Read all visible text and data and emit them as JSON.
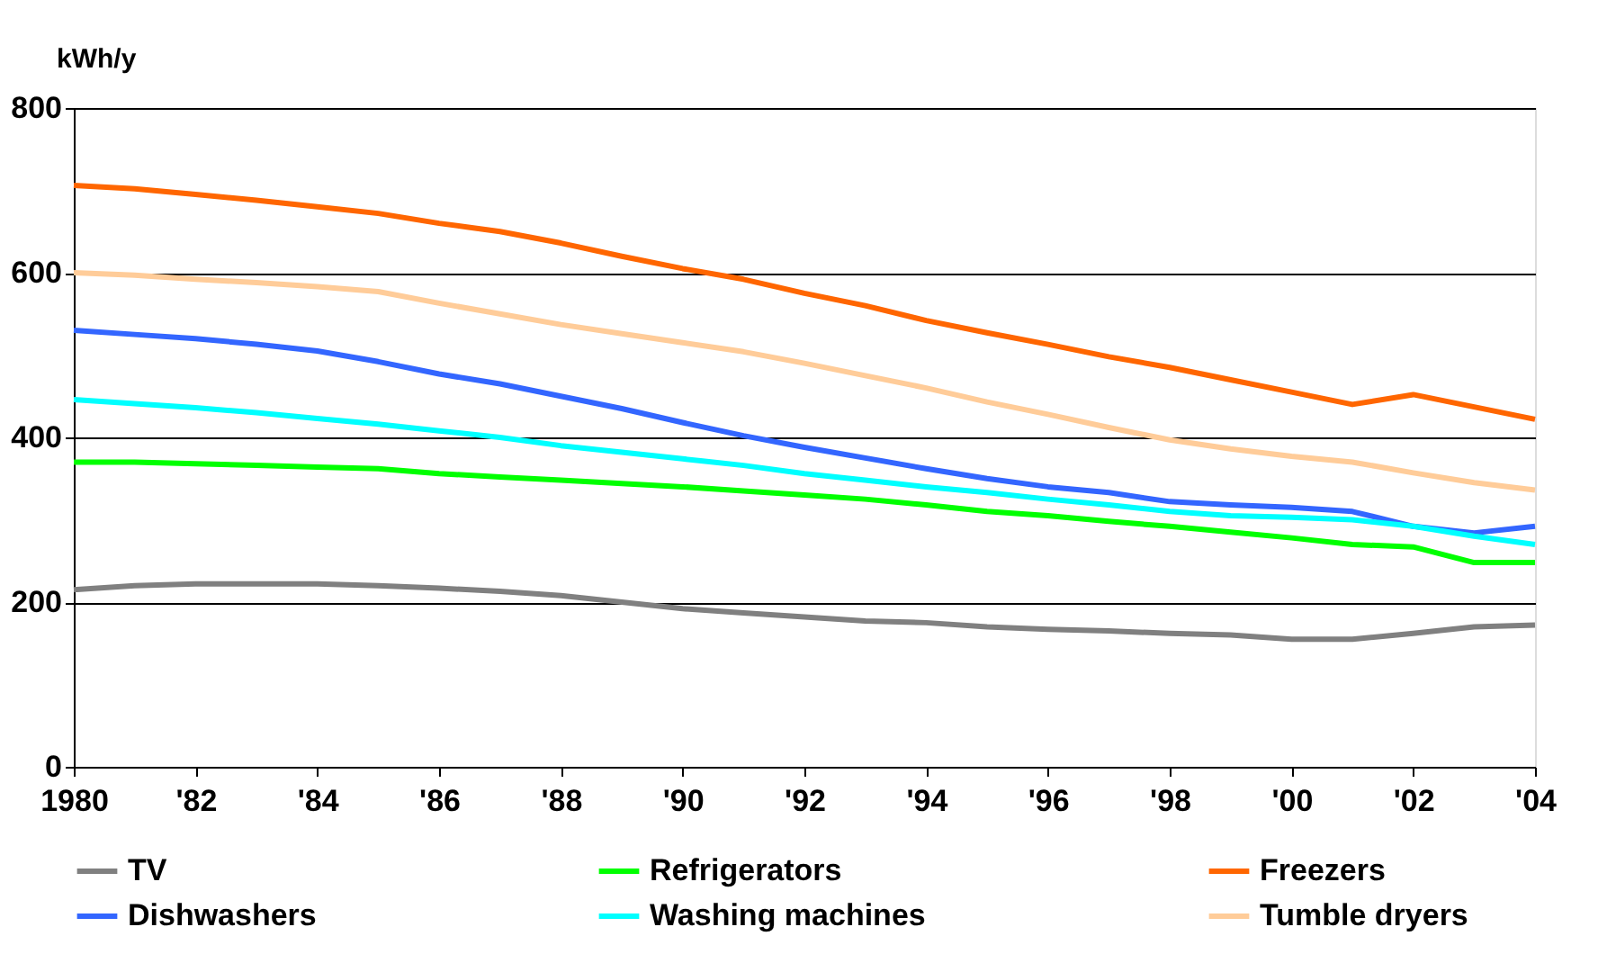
{
  "chart_data": {
    "type": "line",
    "ylabel": "kWh/y",
    "x": [
      1980,
      1981,
      1982,
      1983,
      1984,
      1985,
      1986,
      1987,
      1988,
      1989,
      1990,
      1991,
      1992,
      1993,
      1994,
      1995,
      1996,
      1997,
      1998,
      1999,
      2000,
      2001,
      2002,
      2003,
      2004
    ],
    "xlim": [
      1980,
      2004
    ],
    "xticks": [
      1980,
      {
        "value": 1982,
        "label": "'82"
      },
      {
        "value": 1984,
        "label": "'84"
      },
      {
        "value": 1986,
        "label": "'86"
      },
      {
        "value": 1988,
        "label": "'88"
      },
      {
        "value": 1990,
        "label": "'90"
      },
      {
        "value": 1992,
        "label": "'92"
      },
      {
        "value": 1994,
        "label": "'94"
      },
      {
        "value": 1996,
        "label": "'96"
      },
      {
        "value": 1998,
        "label": "'98"
      },
      {
        "value": 2000,
        "label": "'00"
      },
      {
        "value": 2002,
        "label": "'02"
      },
      {
        "value": 2004,
        "label": "'04"
      }
    ],
    "ylim": [
      0,
      800
    ],
    "yticks": [
      0,
      200,
      400,
      600,
      800
    ],
    "grid": "y",
    "legend": "bottom",
    "marker": "none",
    "line_style": "solid",
    "series": [
      {
        "name": "TV",
        "color": "#808080",
        "values": [
          215,
          220,
          222,
          222,
          222,
          220,
          217,
          213,
          208,
          200,
          192,
          187,
          182,
          177,
          175,
          170,
          167,
          165,
          162,
          160,
          155,
          155,
          162,
          170,
          172
        ]
      },
      {
        "name": "Refrigerators",
        "color": "#00ff00",
        "values": [
          370,
          370,
          368,
          366,
          364,
          362,
          356,
          352,
          348,
          344,
          340,
          335,
          330,
          325,
          318,
          310,
          305,
          298,
          292,
          285,
          278,
          270,
          267,
          248,
          248
        ]
      },
      {
        "name": "Freezers",
        "color": "#ff6600",
        "values": [
          706,
          702,
          695,
          688,
          680,
          672,
          660,
          650,
          636,
          620,
          605,
          592,
          575,
          560,
          542,
          527,
          513,
          498,
          485,
          470,
          455,
          440,
          452,
          437,
          422
        ]
      },
      {
        "name": "Dishwashers",
        "color": "#3366ff",
        "values": [
          530,
          525,
          520,
          513,
          505,
          492,
          477,
          465,
          450,
          435,
          418,
          402,
          388,
          375,
          362,
          350,
          340,
          333,
          322,
          318,
          315,
          310,
          292,
          284,
          292
        ]
      },
      {
        "name": "Washing machines",
        "color": "#00ffff",
        "values": [
          446,
          441,
          436,
          430,
          423,
          416,
          408,
          400,
          390,
          382,
          374,
          366,
          356,
          348,
          340,
          333,
          325,
          318,
          310,
          305,
          303,
          300,
          292,
          280,
          270
        ]
      },
      {
        "name": "Tumble dryers",
        "color": "#ffcc99",
        "values": [
          600,
          597,
          592,
          588,
          583,
          577,
          563,
          550,
          537,
          526,
          515,
          504,
          490,
          475,
          460,
          443,
          428,
          412,
          397,
          386,
          377,
          370,
          357,
          345,
          336
        ]
      }
    ]
  }
}
